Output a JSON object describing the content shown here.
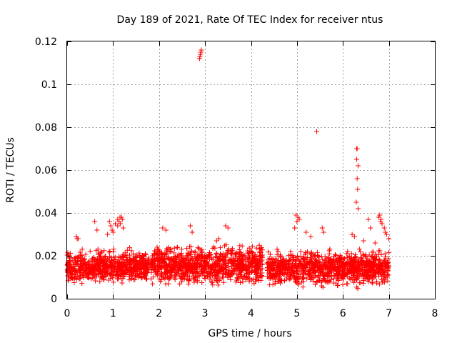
{
  "chart_data": {
    "type": "scatter",
    "title": "Day 189 of 2021, Rate Of TEC Index for receiver ntus",
    "xlabel": "GPS time / hours",
    "ylabel": "ROTI / TECUs",
    "xlim": [
      0,
      8
    ],
    "ylim": [
      0,
      0.12
    ],
    "x_ticks": [
      "0",
      "1",
      "2",
      "3",
      "4",
      "5",
      "6",
      "7",
      "8"
    ],
    "y_ticks": [
      "0",
      "0.02",
      "0.04",
      "0.06",
      "0.08",
      "0.1",
      "0.12"
    ],
    "grid": true,
    "marker": "+",
    "color": "#ff0000",
    "density_bands": [
      {
        "x_start": 0.0,
        "x_end": 1.78,
        "y_low": 0.005,
        "y_high": 0.022
      },
      {
        "x_start": 1.82,
        "x_end": 4.25,
        "y_low": 0.004,
        "y_high": 0.024
      },
      {
        "x_start": 4.35,
        "x_end": 7.0,
        "y_low": 0.004,
        "y_high": 0.022
      }
    ],
    "series": [
      {
        "name": "ROTI",
        "points": [
          [
            2.88,
            0.112
          ],
          [
            2.89,
            0.113
          ],
          [
            2.9,
            0.114
          ],
          [
            2.91,
            0.115
          ],
          [
            2.92,
            0.116
          ],
          [
            5.43,
            0.078
          ],
          [
            6.3,
            0.07
          ],
          [
            6.31,
            0.07
          ],
          [
            6.3,
            0.065
          ],
          [
            6.33,
            0.062
          ],
          [
            6.31,
            0.056
          ],
          [
            6.32,
            0.051
          ],
          [
            6.29,
            0.045
          ],
          [
            6.33,
            0.042
          ],
          [
            0.2,
            0.029
          ],
          [
            0.22,
            0.028
          ],
          [
            0.24,
            0.028
          ],
          [
            0.6,
            0.036
          ],
          [
            0.65,
            0.032
          ],
          [
            0.92,
            0.036
          ],
          [
            0.95,
            0.034
          ],
          [
            1.1,
            0.037
          ],
          [
            1.15,
            0.038
          ],
          [
            1.18,
            0.038
          ],
          [
            1.2,
            0.037
          ],
          [
            1.05,
            0.035
          ],
          [
            1.22,
            0.033
          ],
          [
            0.88,
            0.03
          ],
          [
            1.0,
            0.031
          ],
          [
            1.1,
            0.034
          ],
          [
            1.13,
            0.036
          ],
          [
            0.98,
            0.032
          ],
          [
            1.16,
            0.035
          ],
          [
            2.08,
            0.033
          ],
          [
            2.15,
            0.032
          ],
          [
            2.68,
            0.034
          ],
          [
            2.72,
            0.031
          ],
          [
            3.45,
            0.034
          ],
          [
            3.5,
            0.033
          ],
          [
            3.3,
            0.028
          ],
          [
            3.25,
            0.027
          ],
          [
            4.98,
            0.039
          ],
          [
            5.02,
            0.038
          ],
          [
            5.05,
            0.037
          ],
          [
            5.0,
            0.036
          ],
          [
            4.95,
            0.033
          ],
          [
            5.2,
            0.031
          ],
          [
            5.3,
            0.029
          ],
          [
            5.55,
            0.033
          ],
          [
            5.58,
            0.031
          ],
          [
            6.2,
            0.03
          ],
          [
            6.25,
            0.029
          ],
          [
            6.55,
            0.037
          ],
          [
            6.6,
            0.033
          ],
          [
            6.8,
            0.039
          ],
          [
            6.83,
            0.037
          ],
          [
            6.85,
            0.035
          ],
          [
            6.9,
            0.033
          ],
          [
            6.92,
            0.031
          ],
          [
            6.95,
            0.03
          ],
          [
            7.0,
            0.028
          ],
          [
            6.7,
            0.026
          ],
          [
            6.45,
            0.027
          ],
          [
            6.78,
            0.038
          ],
          [
            6.82,
            0.036
          ]
        ]
      }
    ]
  }
}
